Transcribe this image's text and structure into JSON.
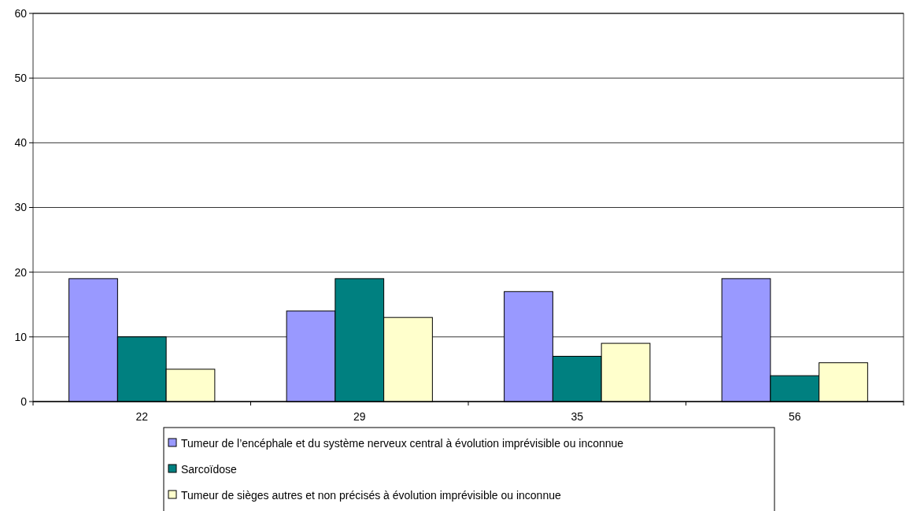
{
  "chart_data": {
    "type": "bar",
    "categories": [
      "22",
      "29",
      "35",
      "56"
    ],
    "series": [
      {
        "name": "Tumeur de l’encéphale et du système nerveux central à évolution imprévisible ou inconnue",
        "color": "#9999ff",
        "values": [
          19,
          14,
          17,
          19
        ]
      },
      {
        "name": "Sarcoïdose",
        "color": "#008080",
        "values": [
          10,
          19,
          7,
          4
        ]
      },
      {
        "name": "Tumeur de sièges autres et non précisés à évolution imprévisible ou inconnue",
        "color": "#ffffcc",
        "values": [
          5,
          13,
          9,
          6
        ]
      }
    ],
    "ylim": [
      0,
      60
    ],
    "yticks": [
      0,
      10,
      20,
      30,
      40,
      50,
      60
    ],
    "grid": "y",
    "legend": "bottom"
  }
}
